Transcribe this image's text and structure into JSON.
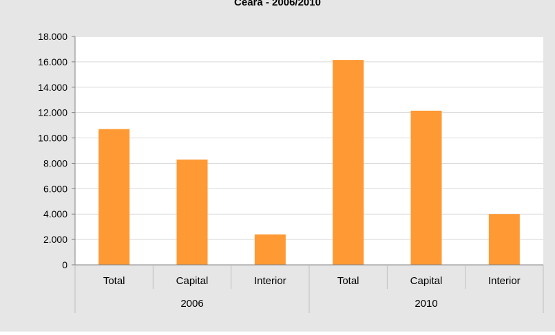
{
  "chart_data": {
    "type": "bar",
    "title": "Ceará - 2006/2010",
    "groups": [
      {
        "label": "2006",
        "categories": [
          "Total",
          "Capital",
          "Interior"
        ],
        "values": [
          10700,
          8300,
          2400
        ]
      },
      {
        "label": "2010",
        "categories": [
          "Total",
          "Capital",
          "Interior"
        ],
        "values": [
          16150,
          12150,
          4000
        ]
      }
    ],
    "yticks": [
      "0",
      "2.000",
      "4.000",
      "6.000",
      "8.000",
      "10.000",
      "12.000",
      "14.000",
      "16.000",
      "18.000"
    ],
    "ylim": [
      0,
      18000
    ],
    "xlabel": "",
    "ylabel": "",
    "legend": "none",
    "grid": true,
    "colors": {
      "bar": "#FF9933",
      "background": "#E6E6E6",
      "plot": "#FFFFFF",
      "grid": "#D9D9D9",
      "axis": "#808080"
    }
  }
}
